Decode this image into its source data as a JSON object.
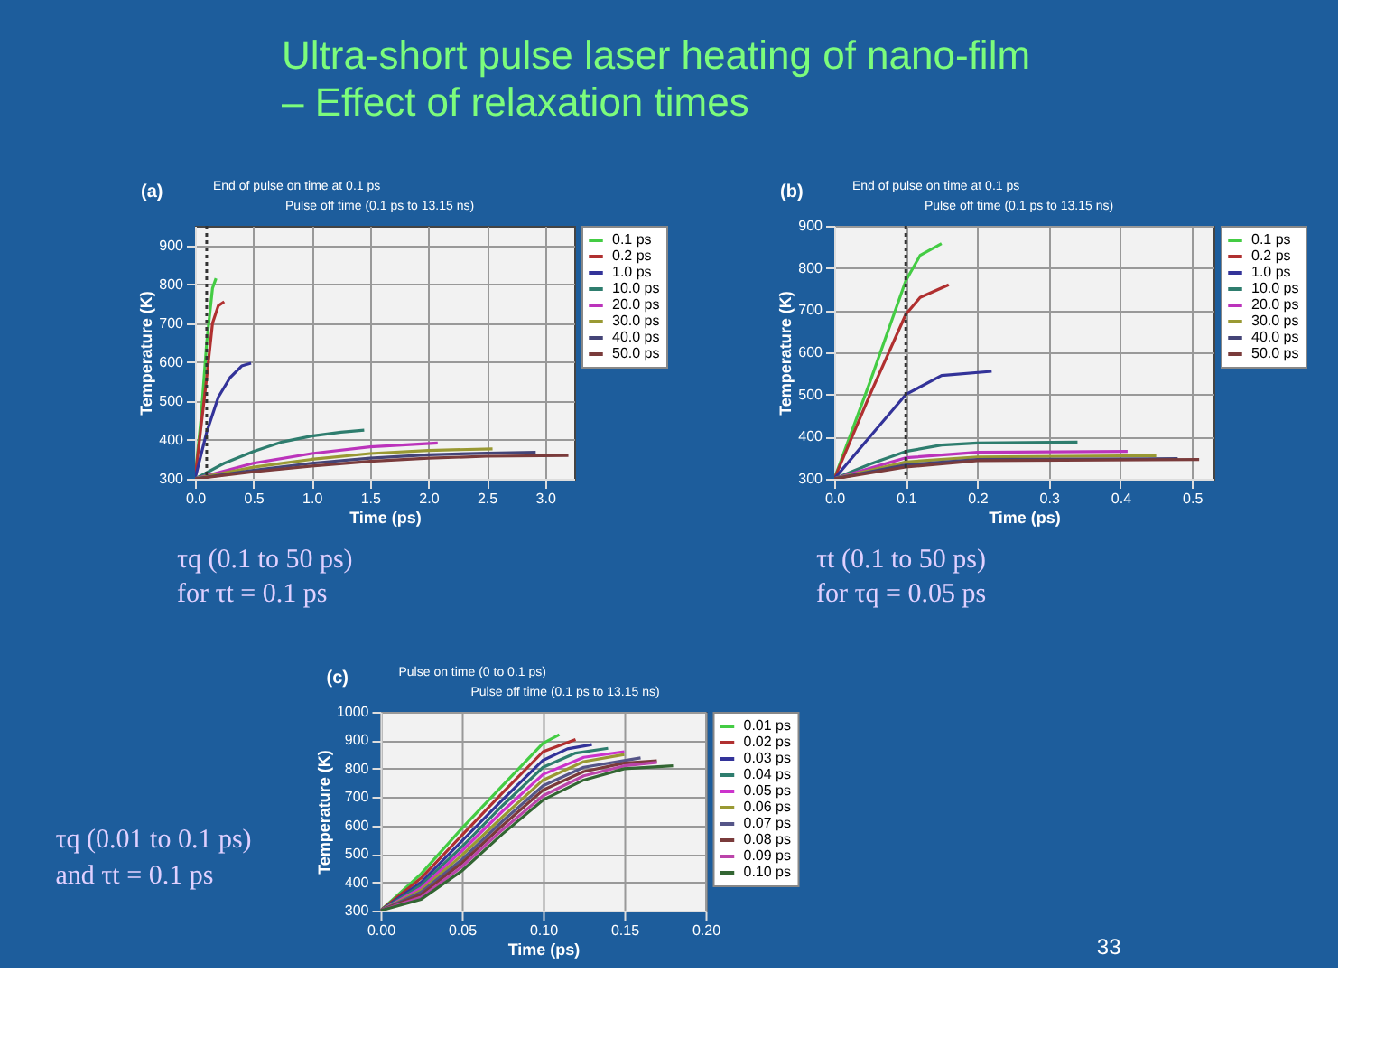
{
  "chart_data": [
    {
      "type": "other",
      "title": "Ultra-short pulse laser heating of nano-film\n– Effect of relaxation times"
    },
    {
      "type": "line",
      "title": "(a)",
      "xlabel": "Time (ps)",
      "ylabel": "Temperature (K)",
      "xlim": [
        0,
        3.25
      ],
      "ylim": [
        300,
        950
      ],
      "xticks": [
        {
          "value": 0,
          "label": "0.0"
        },
        0.5,
        {
          "value": 1,
          "label": "1.0"
        },
        1.5,
        {
          "value": 2,
          "label": "2.0"
        },
        2.5,
        {
          "value": 3,
          "label": "3.0"
        }
      ],
      "yticks": [
        300,
        400,
        500,
        600,
        700,
        800,
        900
      ],
      "grid": true,
      "legend": "right",
      "ref_lines": [
        {
          "axis": "x",
          "value": 0.1,
          "line_style": "dotted",
          "color": "#333333"
        }
      ],
      "annotations": [
        "End of pulse on time at 0.1 ps",
        "Pulse off time (0.1 ps to 13.15 ns)",
        "τq (0.1 to 50 ps)",
        "for τt = 0.1 ps"
      ],
      "series": [
        {
          "name": "0.1 ps",
          "color": "#44cc44",
          "x": [
            0,
            0.05,
            0.1,
            0.15,
            0.18
          ],
          "values": [
            300,
            450,
            650,
            790,
            815
          ]
        },
        {
          "name": "0.2 ps",
          "color": "#b03030",
          "x": [
            0,
            0.1,
            0.15,
            0.2,
            0.25
          ],
          "values": [
            300,
            560,
            700,
            745,
            755
          ]
        },
        {
          "name": "1.0 ps",
          "color": "#333399",
          "x": [
            0,
            0.1,
            0.2,
            0.3,
            0.4,
            0.48
          ],
          "values": [
            300,
            420,
            510,
            560,
            590,
            597
          ]
        },
        {
          "name": "10.0 ps",
          "color": "#2e7d6e",
          "x": [
            0,
            0.25,
            0.5,
            0.75,
            1.0,
            1.25,
            1.45
          ],
          "values": [
            300,
            340,
            370,
            395,
            410,
            420,
            425
          ]
        },
        {
          "name": "20.0 ps",
          "color": "#bb33bb",
          "x": [
            0,
            0.5,
            1.0,
            1.5,
            2.08
          ],
          "values": [
            300,
            340,
            365,
            382,
            392
          ]
        },
        {
          "name": "30.0 ps",
          "color": "#999933",
          "x": [
            0,
            0.5,
            1.0,
            1.5,
            2.0,
            2.55
          ],
          "values": [
            300,
            330,
            350,
            365,
            373,
            377
          ]
        },
        {
          "name": "40.0 ps",
          "color": "#444477",
          "x": [
            0,
            0.5,
            1.0,
            1.5,
            2.0,
            2.5,
            2.92
          ],
          "values": [
            300,
            322,
            340,
            353,
            362,
            366,
            368
          ]
        },
        {
          "name": "50.0 ps",
          "color": "#7a3b3b",
          "x": [
            0,
            0.5,
            1.0,
            1.5,
            2.0,
            2.5,
            3.2
          ],
          "values": [
            300,
            318,
            333,
            345,
            353,
            358,
            360
          ]
        }
      ]
    },
    {
      "type": "line",
      "title": "(b)",
      "xlabel": "Time (ps)",
      "ylabel": "Temperature (K)",
      "xlim": [
        0,
        0.53
      ],
      "ylim": [
        300,
        900
      ],
      "xticks": [
        {
          "value": 0,
          "label": "0.0"
        },
        0.1,
        0.2,
        0.3,
        0.4,
        0.5
      ],
      "yticks": [
        300,
        400,
        500,
        600,
        700,
        800,
        900
      ],
      "grid": true,
      "legend": "right",
      "ref_lines": [
        {
          "axis": "x",
          "value": 0.1,
          "line_style": "dotted",
          "color": "#333333"
        }
      ],
      "annotations": [
        "End of pulse on time at 0.1 ps",
        "Pulse off time (0.1 ps to 13.15 ns)",
        "τt (0.1 to 50 ps)",
        "for τq = 0.05 ps"
      ],
      "series": [
        {
          "name": "0.1 ps",
          "color": "#44cc44",
          "x": [
            0,
            0.05,
            0.1,
            0.12,
            0.15
          ],
          "values": [
            300,
            530,
            770,
            830,
            858
          ]
        },
        {
          "name": "0.2 ps",
          "color": "#b03030",
          "x": [
            0,
            0.05,
            0.1,
            0.12,
            0.16
          ],
          "values": [
            300,
            500,
            690,
            730,
            760
          ]
        },
        {
          "name": "1.0 ps",
          "color": "#333399",
          "x": [
            0,
            0.05,
            0.1,
            0.15,
            0.22
          ],
          "values": [
            300,
            400,
            500,
            545,
            555
          ]
        },
        {
          "name": "10.0 ps",
          "color": "#2e7d6e",
          "x": [
            0,
            0.05,
            0.1,
            0.15,
            0.2,
            0.34
          ],
          "values": [
            300,
            335,
            365,
            380,
            385,
            387
          ]
        },
        {
          "name": "20.0 ps",
          "color": "#bb33bb",
          "x": [
            0,
            0.1,
            0.2,
            0.41
          ],
          "values": [
            300,
            350,
            363,
            365
          ]
        },
        {
          "name": "30.0 ps",
          "color": "#999933",
          "x": [
            0,
            0.1,
            0.2,
            0.45
          ],
          "values": [
            300,
            340,
            352,
            355
          ]
        },
        {
          "name": "40.0 ps",
          "color": "#444477",
          "x": [
            0,
            0.1,
            0.2,
            0.48
          ],
          "values": [
            300,
            333,
            346,
            348
          ]
        },
        {
          "name": "50.0 ps",
          "color": "#7a3b3b",
          "x": [
            0,
            0.1,
            0.2,
            0.51
          ],
          "values": [
            300,
            328,
            343,
            346
          ]
        }
      ]
    },
    {
      "type": "line",
      "title": "(c)",
      "xlabel": "Time (ps)",
      "ylabel": "Temperature (K)",
      "xlim": [
        0,
        0.2
      ],
      "ylim": [
        300,
        1000
      ],
      "xticks": [
        {
          "value": 0,
          "label": "0.00"
        },
        0.05,
        {
          "value": 0.1,
          "label": "0.10"
        },
        0.15,
        {
          "value": 0.2,
          "label": "0.20"
        }
      ],
      "yticks": [
        300,
        400,
        500,
        600,
        700,
        800,
        900,
        1000
      ],
      "grid": true,
      "legend": "right",
      "annotations": [
        "Pulse on time (0 to 0.1 ps)",
        "Pulse off time (0.1 ps to 13.15 ns)",
        "τq (0.01 to 0.1 ps)",
        "and τt = 0.1 ps",
        "33"
      ],
      "series": [
        {
          "name": "0.01 ps",
          "color": "#44cc44",
          "x": [
            0,
            0.025,
            0.05,
            0.075,
            0.1,
            0.11
          ],
          "values": [
            300,
            430,
            590,
            740,
            890,
            920
          ]
        },
        {
          "name": "0.02 ps",
          "color": "#b03030",
          "x": [
            0,
            0.025,
            0.05,
            0.075,
            0.1,
            0.12
          ],
          "values": [
            300,
            415,
            565,
            715,
            860,
            903
          ]
        },
        {
          "name": "0.03 ps",
          "color": "#333399",
          "x": [
            0,
            0.025,
            0.05,
            0.075,
            0.1,
            0.115,
            0.13
          ],
          "values": [
            300,
            400,
            545,
            690,
            830,
            870,
            885
          ]
        },
        {
          "name": "0.04 ps",
          "color": "#2e7d6e",
          "x": [
            0,
            0.025,
            0.05,
            0.075,
            0.1,
            0.12,
            0.14
          ],
          "values": [
            300,
            390,
            525,
            670,
            805,
            855,
            872
          ]
        },
        {
          "name": "0.05 ps",
          "color": "#cc33cc",
          "x": [
            0,
            0.025,
            0.05,
            0.075,
            0.1,
            0.125,
            0.15
          ],
          "values": [
            300,
            380,
            510,
            650,
            780,
            840,
            860
          ]
        },
        {
          "name": "0.06 ps",
          "color": "#999933",
          "x": [
            0,
            0.025,
            0.05,
            0.075,
            0.1,
            0.125,
            0.15
          ],
          "values": [
            300,
            372,
            495,
            630,
            760,
            825,
            850
          ]
        },
        {
          "name": "0.07 ps",
          "color": "#555588",
          "x": [
            0,
            0.025,
            0.05,
            0.075,
            0.1,
            0.125,
            0.16
          ],
          "values": [
            300,
            365,
            480,
            615,
            740,
            805,
            838
          ]
        },
        {
          "name": "0.08 ps",
          "color": "#7a3b3b",
          "x": [
            0,
            0.025,
            0.05,
            0.075,
            0.1,
            0.125,
            0.15,
            0.17
          ],
          "values": [
            300,
            357,
            468,
            600,
            725,
            790,
            820,
            828
          ]
        },
        {
          "name": "0.09 ps",
          "color": "#bb44aa",
          "x": [
            0,
            0.025,
            0.05,
            0.075,
            0.1,
            0.125,
            0.15,
            0.17
          ],
          "values": [
            300,
            348,
            455,
            585,
            705,
            775,
            810,
            822
          ]
        },
        {
          "name": "0.10 ps",
          "color": "#336633",
          "x": [
            0,
            0.025,
            0.05,
            0.075,
            0.1,
            0.125,
            0.15,
            0.18
          ],
          "values": [
            300,
            340,
            440,
            570,
            690,
            760,
            800,
            810
          ]
        }
      ]
    }
  ]
}
